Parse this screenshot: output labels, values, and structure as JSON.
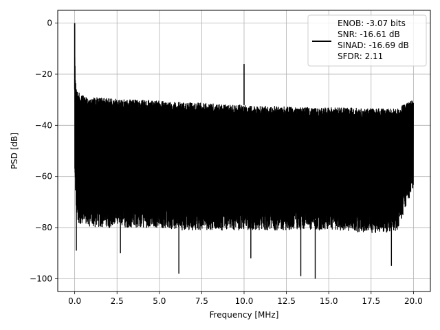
{
  "chart_data": {
    "type": "line",
    "title": "",
    "xlabel": "Frequency [MHz]",
    "ylabel": "PSD [dB]",
    "xlim": [
      -1.0,
      21.0
    ],
    "ylim": [
      -105,
      5
    ],
    "xticks": [
      0.0,
      2.5,
      5.0,
      7.5,
      10.0,
      12.5,
      15.0,
      17.5,
      20.0
    ],
    "xtick_labels": [
      "0.0",
      "2.5",
      "5.0",
      "7.5",
      "10.0",
      "12.5",
      "15.0",
      "17.5",
      "20.0"
    ],
    "yticks": [
      0,
      -20,
      -40,
      -60,
      -80,
      -100
    ],
    "ytick_labels": [
      "0",
      "−20",
      "−40",
      "−60",
      "−80",
      "−100"
    ],
    "grid": true,
    "legend": {
      "placement": "upper-right",
      "entries": [
        "ENOB: -3.07 bits",
        "SNR: -16.61 dB",
        "SINAD: -16.69 dB",
        "SFDR: 2.11"
      ]
    },
    "series": [
      {
        "color": "#000000",
        "description_points": {
          "x": [
            0.0,
            0.02,
            0.05,
            0.1,
            0.15,
            0.2,
            0.5,
            1.0,
            2.0,
            3.0,
            4.0,
            5.0,
            6.0,
            7.0,
            8.0,
            9.0,
            10.0,
            11.0,
            12.0,
            13.0,
            14.0,
            15.0,
            16.0,
            17.0,
            18.0,
            19.0,
            20.0
          ],
          "upper_envelope": [
            0,
            -15,
            -22,
            -25,
            -26,
            -27,
            -28.5,
            -29,
            -29.5,
            -30,
            -30,
            -30.5,
            -31,
            -31,
            -31.5,
            -32,
            -32,
            -32.5,
            -32.5,
            -33,
            -33,
            -33,
            -33,
            -33.5,
            -33.5,
            -33.5,
            -30
          ],
          "lower_typical": [
            -57,
            -60,
            -65,
            -70,
            -72,
            -74,
            -75,
            -76,
            -76,
            -76,
            -76,
            -76,
            -77,
            -77,
            -77,
            -77,
            -77,
            -77,
            -77,
            -77,
            -77,
            -77,
            -77,
            -78,
            -78,
            -78,
            -60
          ]
        },
        "spurs": [
          {
            "x": 0.0,
            "y": 0
          },
          {
            "x": 10.0,
            "y": -16
          }
        ],
        "deep_nulls": [
          {
            "x": 0.1,
            "y": -89
          },
          {
            "x": 2.7,
            "y": -90
          },
          {
            "x": 6.15,
            "y": -98
          },
          {
            "x": 10.4,
            "y": -92
          },
          {
            "x": 13.35,
            "y": -99
          },
          {
            "x": 14.2,
            "y": -100
          },
          {
            "x": 18.7,
            "y": -95
          }
        ]
      }
    ]
  }
}
